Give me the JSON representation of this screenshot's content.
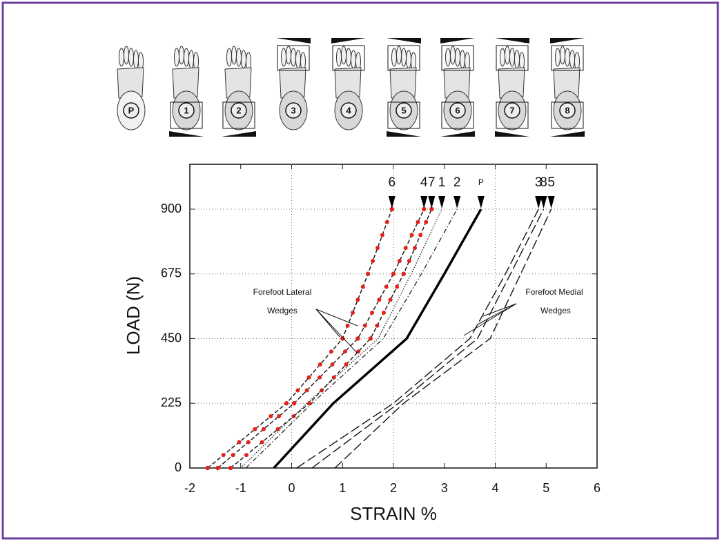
{
  "wedge_conditions": [
    "P",
    "1",
    "2",
    "3",
    "4",
    "5",
    "6",
    "7",
    "8"
  ],
  "chart_data": {
    "type": "line",
    "xlabel": "STRAIN %",
    "ylabel": "LOAD (N)",
    "xlim": [
      -2,
      6
    ],
    "xticks": [
      -2,
      -1,
      0,
      1,
      2,
      3,
      4,
      5,
      6
    ],
    "ylim": [
      0,
      1056
    ],
    "yticks": [
      0,
      225,
      450,
      675,
      900
    ],
    "grid": true,
    "y": [
      0,
      225,
      450,
      675,
      900
    ],
    "series": [
      {
        "name": "6",
        "color": "#111",
        "line_style": "dashed",
        "markers": true,
        "marker_color": "#e0231c",
        "values": [
          -1.65,
          -0.1,
          1.0,
          1.5,
          1.97
        ]
      },
      {
        "name": "4",
        "color": "#111",
        "line_style": "dashed",
        "markers": true,
        "marker_color": "#e0231c",
        "values": [
          -1.45,
          0.05,
          1.3,
          2.0,
          2.6
        ]
      },
      {
        "name": "7",
        "color": "#111",
        "line_style": "dashed",
        "markers": true,
        "marker_color": "#e0231c",
        "values": [
          -1.2,
          0.35,
          1.55,
          2.2,
          2.75
        ]
      },
      {
        "name": "1",
        "color": "#333",
        "line_style": "dotted",
        "markers": false,
        "values": [
          -1.0,
          0.3,
          1.7,
          2.35,
          2.95
        ]
      },
      {
        "name": "2",
        "color": "#333",
        "line_style": "dash-dot",
        "markers": false,
        "values": [
          -0.9,
          0.4,
          1.8,
          2.55,
          3.25
        ]
      },
      {
        "name": "P",
        "color": "#000",
        "line_style": "solid",
        "markers": false,
        "values": [
          -0.35,
          0.82,
          2.26,
          3.0,
          3.72
        ]
      },
      {
        "name": "3",
        "color": "#111",
        "line_style": "long-dash",
        "markers": false,
        "values": [
          0.1,
          2.0,
          3.5,
          4.2,
          4.85
        ]
      },
      {
        "name": "8",
        "color": "#111",
        "line_style": "long-dash",
        "markers": false,
        "values": [
          0.4,
          2.1,
          3.65,
          4.3,
          4.95
        ]
      },
      {
        "name": "5",
        "color": "#111",
        "line_style": "long-dash",
        "markers": false,
        "values": [
          0.85,
          2.2,
          3.9,
          4.5,
          5.1
        ]
      }
    ],
    "annotations": [
      "Forefoot Lateral",
      "Wedges",
      "Forefoot Medial",
      "Wedges"
    ]
  }
}
